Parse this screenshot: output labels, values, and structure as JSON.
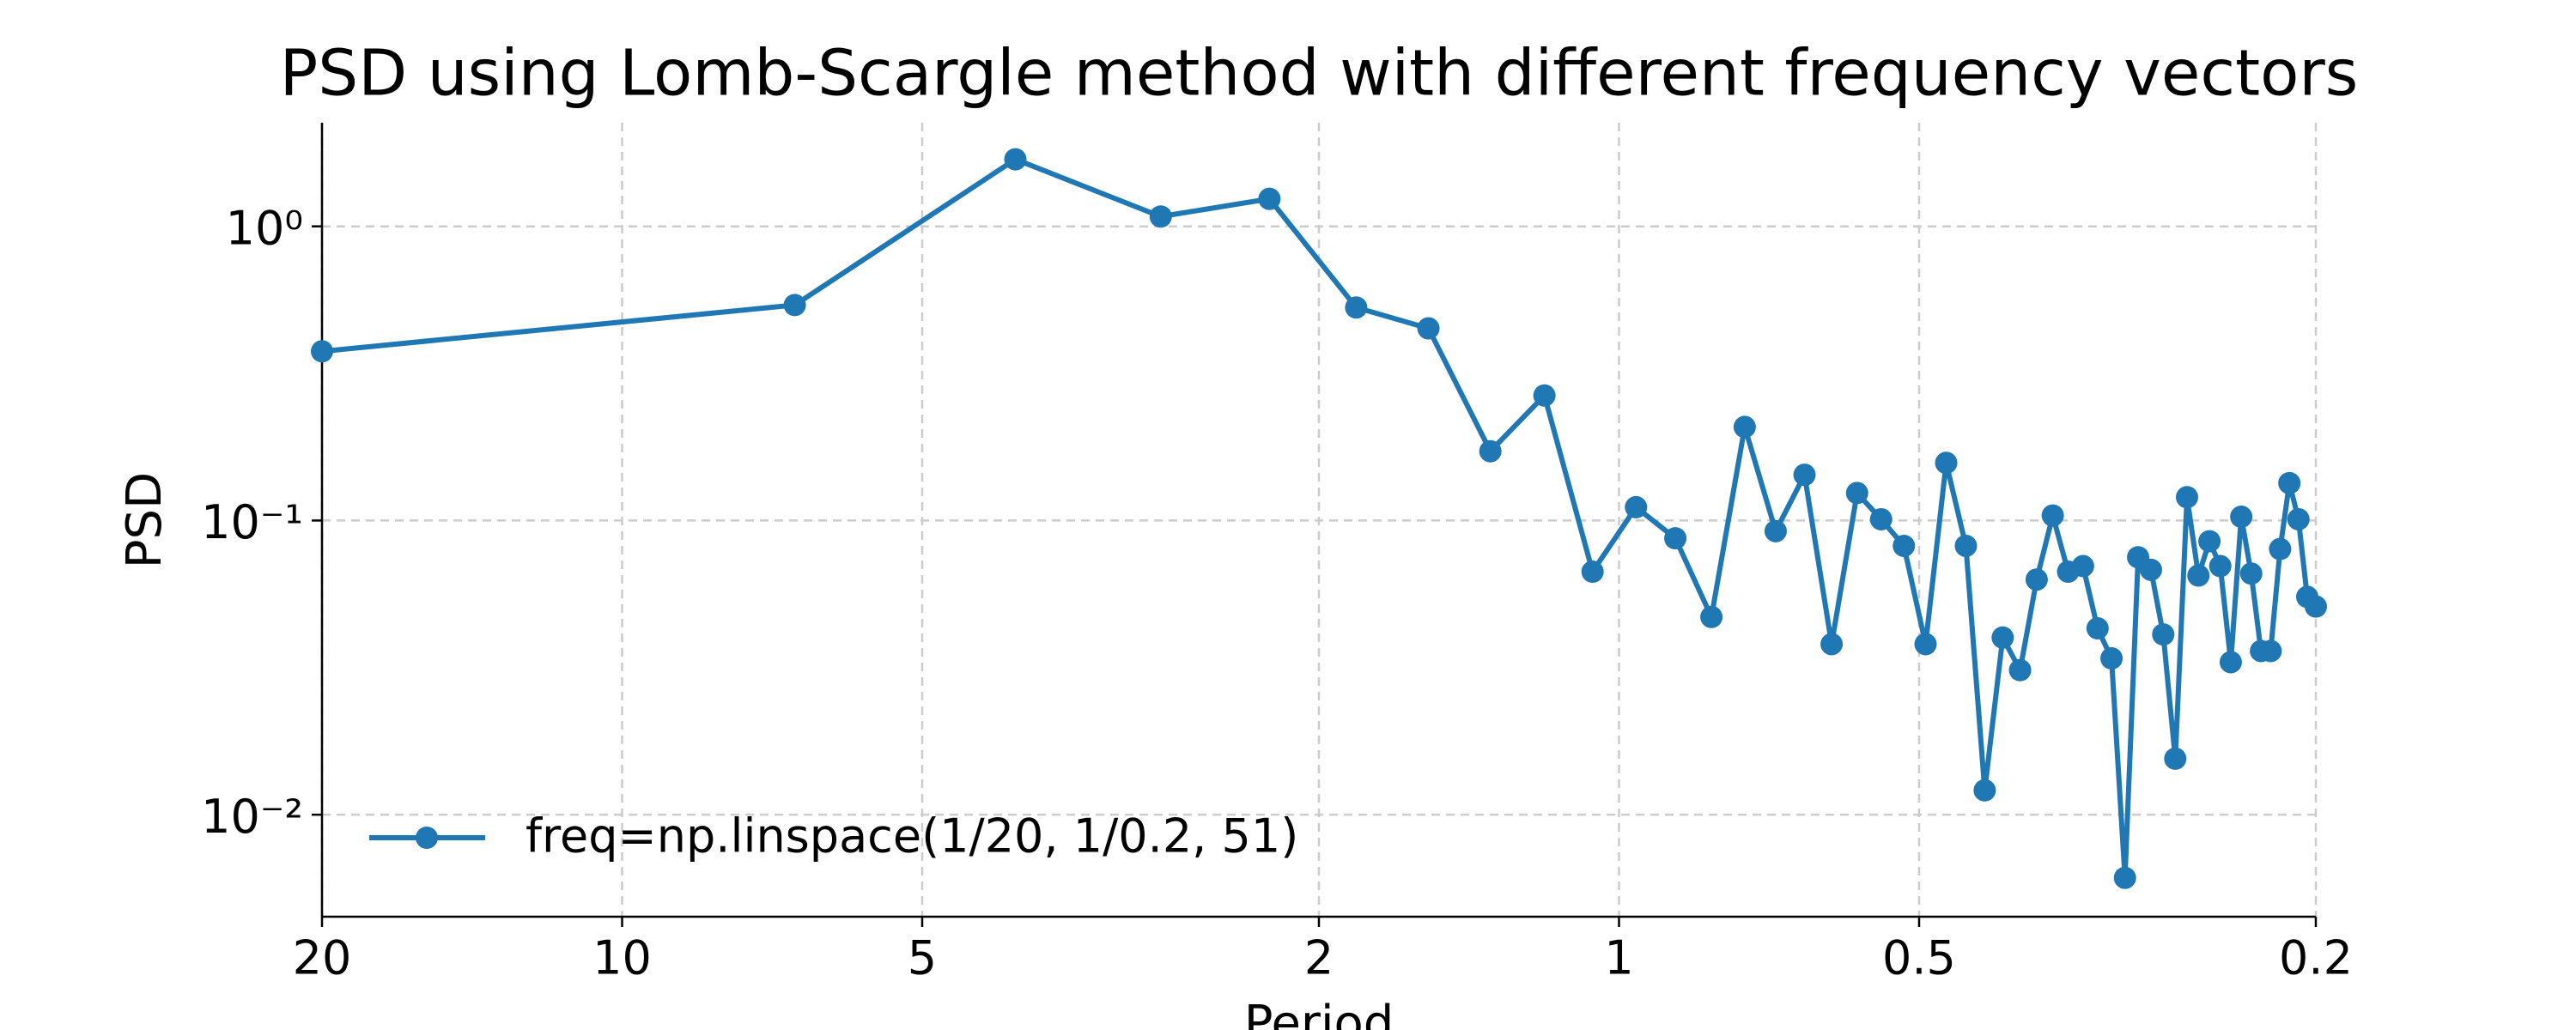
{
  "chart_data": {
    "type": "line",
    "title": "PSD using Lomb-Scargle method with different frequency vectors",
    "xlabel": "Period",
    "ylabel": "PSD",
    "xscale": "log",
    "yscale": "log",
    "grid": true,
    "legend": "lower left",
    "xlim": [
      20,
      0.2
    ],
    "xticks": [
      20,
      10,
      5,
      2,
      1,
      0.5,
      0.2
    ],
    "ylim": [
      0.0045,
      2.25
    ],
    "yticks": [
      {
        "value": 1,
        "label": "10⁰"
      },
      {
        "value": 0.1,
        "label": "10⁻¹"
      },
      {
        "value": 0.01,
        "label": "10⁻²"
      }
    ],
    "x": [
      20,
      6.711,
      4.032,
      2.882,
      2.242,
      1.835,
      1.553,
      1.346,
      1.188,
      1.063,
      0.9615,
      0.878,
      0.8078,
      0.748,
      0.6964,
      0.6515,
      0.612,
      0.577,
      0.5459,
      0.5179,
      0.4926,
      0.4697,
      0.4488,
      0.4297,
      0.4122,
      0.396,
      0.3811,
      0.3672,
      0.3544,
      0.3424,
      0.3311,
      0.3206,
      0.3108,
      0.3015,
      0.2927,
      0.2845,
      0.2767,
      0.2693,
      0.2623,
      0.2557,
      0.2494,
      0.2434,
      0.2376,
      0.2322,
      0.227,
      0.222,
      0.2172,
      0.2126,
      0.2082,
      0.204,
      0.2
    ],
    "series": [
      {
        "name": "freq=np.linspace(1/20, 1/0.2, 51)",
        "color": "#1f77b4",
        "values": [
          0.376,
          0.54,
          1.69,
          1.08,
          1.24,
          0.53,
          0.45,
          0.172,
          0.266,
          0.067,
          0.111,
          0.087,
          0.047,
          0.208,
          0.092,
          0.143,
          0.038,
          0.124,
          0.101,
          0.082,
          0.038,
          0.157,
          0.082,
          0.0121,
          0.04,
          0.031,
          0.063,
          0.104,
          0.067,
          0.07,
          0.043,
          0.034,
          0.0061,
          0.075,
          0.068,
          0.041,
          0.0155,
          0.12,
          0.065,
          0.085,
          0.07,
          0.033,
          0.103,
          0.066,
          0.036,
          0.036,
          0.08,
          0.134,
          0.101,
          0.055,
          0.051
        ]
      }
    ]
  }
}
